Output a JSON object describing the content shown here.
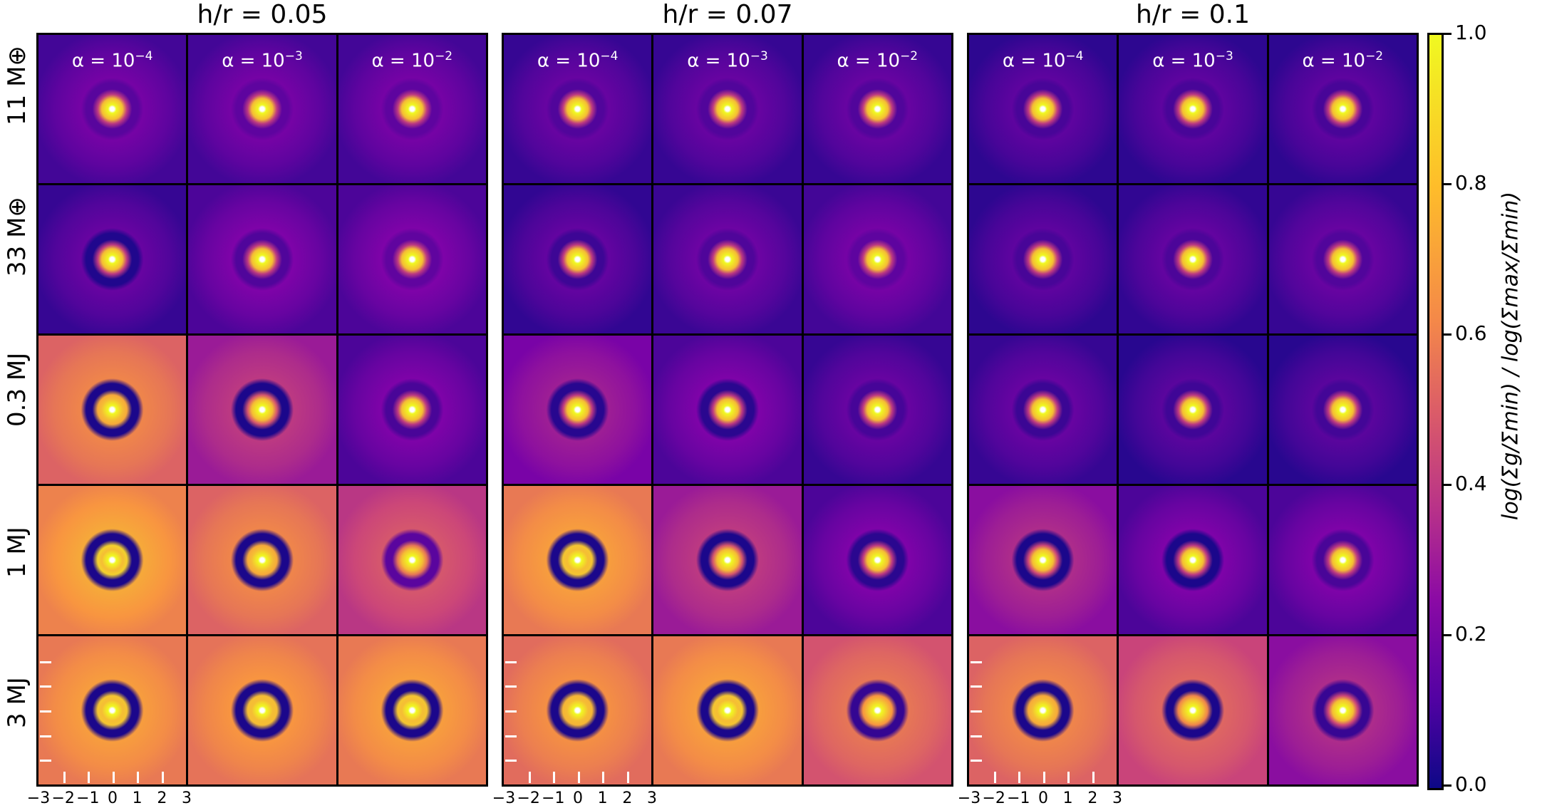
{
  "chart_data": {
    "type": "heatmap",
    "column_groups": [
      "h/r = 0.05",
      "h/r = 0.07",
      "h/r = 0.1"
    ],
    "column_labels": [
      {
        "base": "α = 10",
        "exp": "−4"
      },
      {
        "base": "α = 10",
        "exp": "−3"
      },
      {
        "base": "α = 10",
        "exp": "−2"
      }
    ],
    "row_labels": [
      "11 M⊕",
      "33 M⊕",
      "0.3 MJ",
      "1 MJ",
      "3 MJ"
    ],
    "x_ticks": [
      "−3",
      "−2",
      "−1",
      "0",
      "1",
      "2",
      "3"
    ],
    "xlim": [
      -3,
      3
    ],
    "ylim": [
      -3,
      3
    ],
    "colormap": "plasma",
    "colorbar": {
      "label": "log(Σg/Σmin) / log(Σmax/Σmin)",
      "ticks": [
        "0.0",
        "0.2",
        "0.4",
        "0.6",
        "0.8",
        "1.0"
      ],
      "range": [
        0,
        1
      ]
    },
    "panel_background_level": [
      [
        [
          0.18,
          0.18,
          0.18
        ],
        [
          0.15,
          0.15,
          0.15
        ],
        [
          0.13,
          0.13,
          0.13
        ]
      ],
      [
        [
          0.15,
          0.2,
          0.2
        ],
        [
          0.14,
          0.16,
          0.18
        ],
        [
          0.13,
          0.14,
          0.15
        ]
      ],
      [
        [
          0.65,
          0.4,
          0.2
        ],
        [
          0.3,
          0.2,
          0.15
        ],
        [
          0.15,
          0.12,
          0.12
        ]
      ],
      [
        [
          0.75,
          0.65,
          0.5
        ],
        [
          0.72,
          0.4,
          0.2
        ],
        [
          0.35,
          0.2,
          0.2
        ]
      ],
      [
        [
          0.72,
          0.7,
          0.72
        ],
        [
          0.68,
          0.72,
          0.6
        ],
        [
          0.65,
          0.55,
          0.35
        ]
      ]
    ],
    "panel_gap_depth": [
      [
        [
          0.1,
          0,
          0
        ],
        [
          0,
          0,
          0
        ],
        [
          0,
          0,
          0
        ]
      ],
      [
        [
          0.9,
          0.3,
          0.1
        ],
        [
          0.3,
          0.1,
          0
        ],
        [
          0,
          0,
          0
        ]
      ],
      [
        [
          1,
          1,
          0.4
        ],
        [
          0.9,
          0.8,
          0.2
        ],
        [
          0.4,
          0.1,
          0
        ]
      ],
      [
        [
          1,
          1,
          0.7
        ],
        [
          1,
          1,
          0.8
        ],
        [
          1,
          1,
          0.4
        ]
      ],
      [
        [
          1,
          1,
          1
        ],
        [
          1,
          1,
          0.9
        ],
        [
          1,
          1,
          0.8
        ]
      ]
    ]
  }
}
